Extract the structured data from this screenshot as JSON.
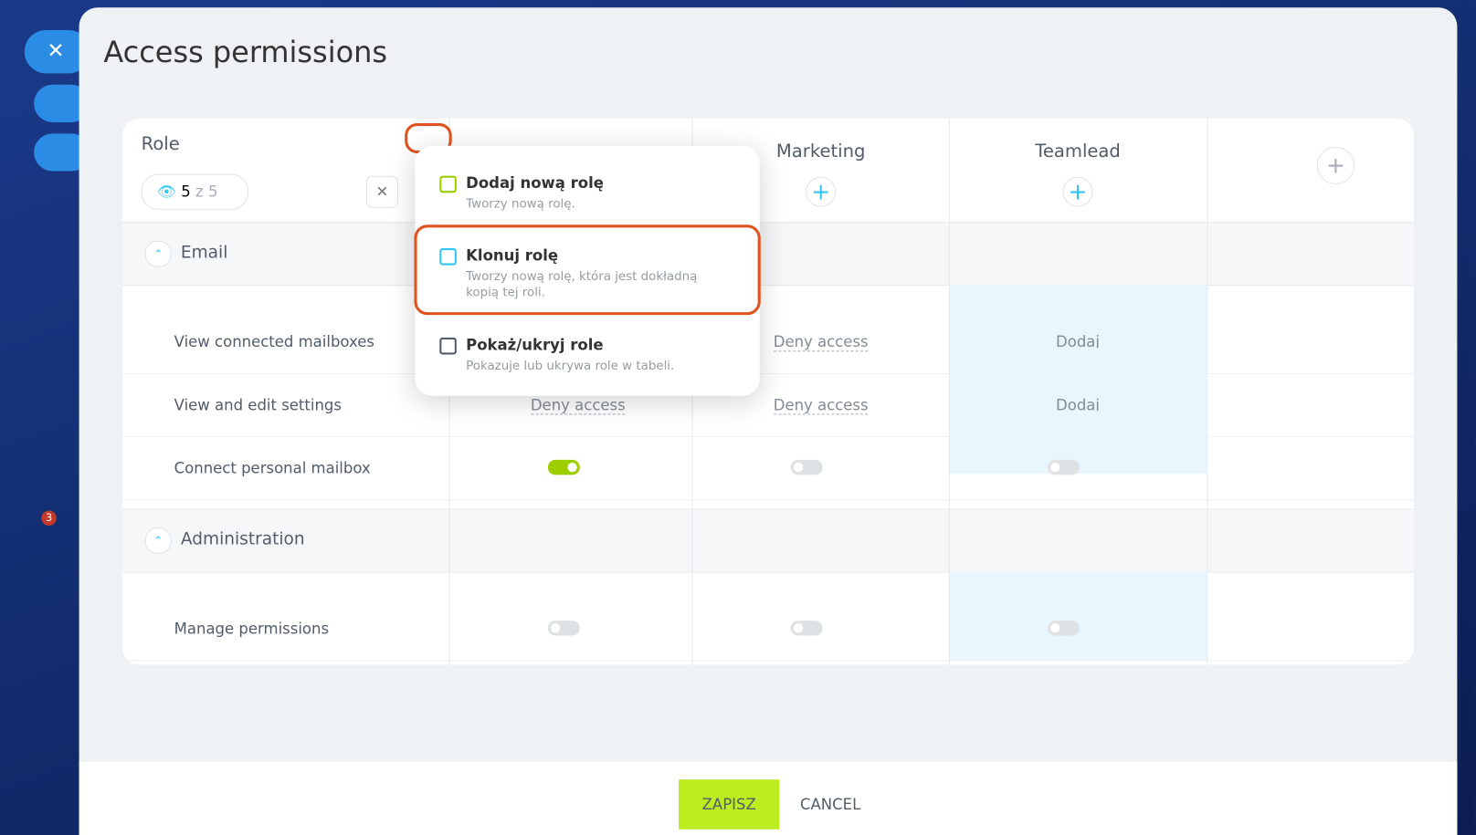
{
  "header": {
    "title": "Access permissions"
  },
  "sidebar": {
    "badge": "3"
  },
  "table": {
    "role_label": "Role",
    "filter": {
      "shown": "5",
      "total": "z 5"
    },
    "columns": [
      "Marketing",
      "Teamlead"
    ],
    "sections": [
      {
        "title": "Email",
        "rows": [
          {
            "label": "View connected mailboxes",
            "cells": [
              null,
              "Deny access",
              "Dodaj"
            ]
          },
          {
            "label": "View and edit settings",
            "cells": [
              "Deny access",
              "Deny access",
              "Dodaj"
            ]
          },
          {
            "label": "Connect personal mailbox",
            "toggles": [
              true,
              false,
              false
            ]
          }
        ]
      },
      {
        "title": "Administration",
        "rows": [
          {
            "label": "Manage permissions",
            "toggles": [
              false,
              false,
              false
            ]
          }
        ]
      }
    ]
  },
  "menu": {
    "items": [
      {
        "title": "Dodaj nową rolę",
        "description": "Tworzy nową rolę."
      },
      {
        "title": "Klonuj rolę",
        "description": "Tworzy nową rolę, która jest dokładną kopią tej roli."
      },
      {
        "title": "Pokaż/ukryj role",
        "description": "Pokazuje lub ukrywa role w tabeli."
      }
    ]
  },
  "footer": {
    "save": "ZAPISZ",
    "cancel": "CANCEL"
  }
}
